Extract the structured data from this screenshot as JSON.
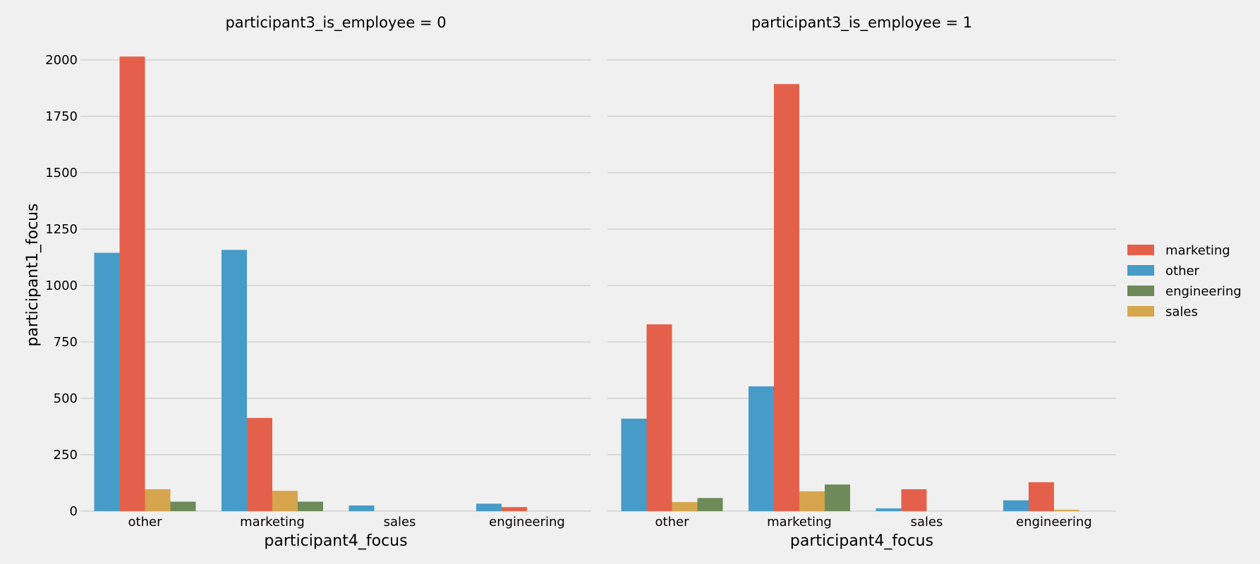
{
  "chart_data": {
    "type": "bar",
    "ylabel": "participant1_focus",
    "xlabel": "participant4_focus",
    "ylim": [
      0,
      2100
    ],
    "yticks": [
      0,
      250,
      500,
      750,
      1000,
      1250,
      1500,
      1750,
      2000
    ],
    "grid": true,
    "legend_position": "right",
    "categories": [
      "other",
      "marketing",
      "sales",
      "engineering"
    ],
    "hue_order": [
      "other",
      "marketing",
      "sales",
      "engineering"
    ],
    "legend": [
      {
        "name": "marketing",
        "color": "#e5604a"
      },
      {
        "name": "other",
        "color": "#469bc8"
      },
      {
        "name": "engineering",
        "color": "#6d8a58"
      },
      {
        "name": "sales",
        "color": "#d6a54d"
      }
    ],
    "panels": [
      {
        "title": "participant3_is_employee = 0",
        "series": [
          {
            "name": "other",
            "color": "#469bc8",
            "values": [
              1145,
              1158,
              25,
              33
            ]
          },
          {
            "name": "marketing",
            "color": "#e5604a",
            "values": [
              2015,
              413,
              0,
              18
            ]
          },
          {
            "name": "sales",
            "color": "#d6a54d",
            "values": [
              97,
              90,
              0,
              0
            ]
          },
          {
            "name": "engineering",
            "color": "#6d8a58",
            "values": [
              42,
              42,
              0,
              0
            ]
          }
        ]
      },
      {
        "title": "participant3_is_employee = 1",
        "series": [
          {
            "name": "other",
            "color": "#469bc8",
            "values": [
              410,
              553,
              12,
              48
            ]
          },
          {
            "name": "marketing",
            "color": "#e5604a",
            "values": [
              828,
              1893,
              97,
              128
            ]
          },
          {
            "name": "sales",
            "color": "#d6a54d",
            "values": [
              40,
              88,
              0,
              6
            ]
          },
          {
            "name": "engineering",
            "color": "#6d8a58",
            "values": [
              58,
              118,
              0,
              0
            ]
          }
        ]
      }
    ]
  }
}
